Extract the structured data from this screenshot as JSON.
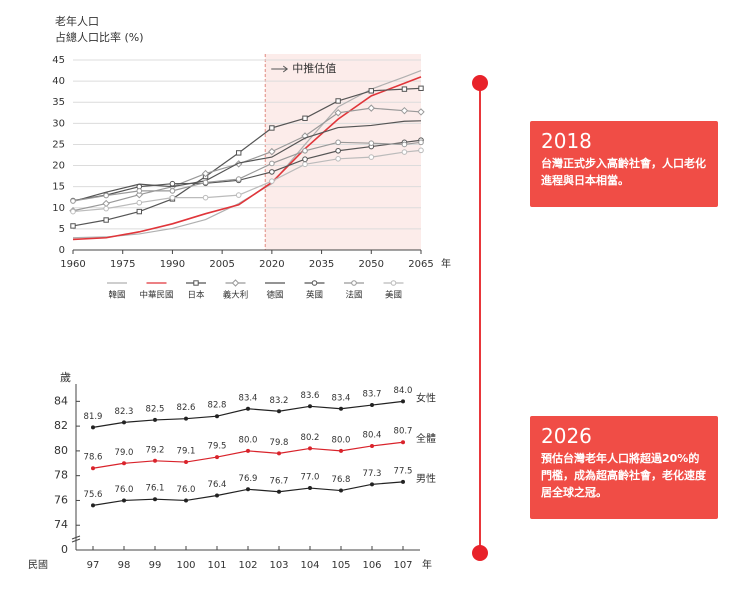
{
  "chart_data": [
    {
      "type": "line",
      "title": "老年人口",
      "y_label": "占總人口比率 (%)",
      "annotation": "中推估值",
      "projection_start": 2018,
      "x_unit": "年",
      "x": [
        1960,
        1970,
        1980,
        1990,
        2000,
        2010,
        2020,
        2030,
        2040,
        2050,
        2060,
        2065
      ],
      "xlim": [
        1960,
        2065
      ],
      "xticks": [
        1960,
        1975,
        1990,
        2005,
        2020,
        2035,
        2050,
        2065
      ],
      "ylim": [
        0,
        45
      ],
      "yticks": [
        0,
        5,
        10,
        15,
        20,
        25,
        30,
        35,
        40,
        45
      ],
      "grid": true,
      "legend": "bottom",
      "series": [
        {
          "name": "韓國",
          "color": "#b0b0b0",
          "marker": "none",
          "values": [
            2.9,
            3.1,
            3.8,
            5.1,
            7.2,
            11.0,
            15.7,
            25.0,
            33.9,
            38.1,
            41.0,
            42.5
          ]
        },
        {
          "name": "中華民國",
          "color": "#e0353a",
          "marker": "none",
          "values": [
            2.5,
            2.9,
            4.3,
            6.2,
            8.6,
            10.7,
            16.0,
            24.0,
            31.0,
            36.5,
            39.5,
            41.0
          ]
        },
        {
          "name": "日本",
          "color": "#555555",
          "marker": "square",
          "values": [
            5.7,
            7.1,
            9.1,
            12.1,
            17.4,
            23.0,
            28.9,
            31.2,
            35.3,
            37.7,
            38.1,
            38.3
          ]
        },
        {
          "name": "義大利",
          "color": "#999999",
          "marker": "diamond",
          "values": [
            9.3,
            11.0,
            13.1,
            15.0,
            18.1,
            20.4,
            23.3,
            27.0,
            32.5,
            33.6,
            33.0,
            32.7
          ]
        },
        {
          "name": "德國",
          "color": "#555555",
          "marker": "none",
          "values": [
            11.5,
            13.7,
            15.6,
            15.0,
            16.4,
            20.6,
            22.0,
            26.5,
            29.0,
            29.5,
            30.5,
            30.6
          ]
        },
        {
          "name": "英國",
          "color": "#555555",
          "marker": "circle",
          "values": [
            11.7,
            13.0,
            15.0,
            15.7,
            15.8,
            16.5,
            18.5,
            21.5,
            23.5,
            24.5,
            25.5,
            26.0
          ]
        },
        {
          "name": "法國",
          "color": "#999999",
          "marker": "circle",
          "values": [
            11.6,
            12.9,
            14.0,
            14.0,
            16.0,
            16.8,
            20.5,
            23.5,
            25.5,
            25.3,
            25.0,
            25.5
          ]
        },
        {
          "name": "美國",
          "color": "#bbbbbb",
          "marker": "circle",
          "values": [
            9.1,
            9.8,
            11.2,
            12.4,
            12.4,
            13.0,
            16.3,
            20.3,
            21.6,
            22.0,
            23.2,
            23.6
          ]
        }
      ]
    },
    {
      "type": "line",
      "y_label": "歲",
      "x_label": "民國",
      "x_unit": "年",
      "categories": [
        "97",
        "98",
        "99",
        "100",
        "101",
        "102",
        "103",
        "104",
        "105",
        "106",
        "107"
      ],
      "ylim": [
        72,
        85.4
      ],
      "yticks": [
        0,
        74,
        76,
        78,
        80,
        82,
        84
      ],
      "axis_break": true,
      "series": [
        {
          "name": "女性",
          "color": "#222222",
          "values": [
            81.9,
            82.3,
            82.5,
            82.6,
            82.8,
            83.4,
            83.2,
            83.6,
            83.4,
            83.7,
            84.0
          ],
          "value_labels": [
            "81.9",
            "82.3",
            "82.5",
            "82.6",
            "82.8",
            "83.4",
            "83.2",
            "83.6",
            "83.4",
            "83.7",
            "84.0"
          ]
        },
        {
          "name": "全體",
          "color": "#d9232b",
          "values": [
            78.6,
            79.0,
            79.2,
            79.1,
            79.5,
            80.0,
            79.8,
            80.2,
            80.0,
            80.4,
            80.7
          ],
          "value_labels": [
            "78.6",
            "79.0",
            "79.2",
            "79.1",
            "79.5",
            "80.0",
            "79.8",
            "80.2",
            "80.0",
            "80.4",
            "80.7"
          ]
        },
        {
          "name": "男性",
          "color": "#222222",
          "values": [
            75.6,
            76.0,
            76.1,
            76.0,
            76.4,
            76.9,
            76.7,
            77.0,
            76.8,
            77.3,
            77.5
          ],
          "value_labels": [
            "75.6",
            "76.0",
            "76.1",
            "76.0",
            "76.4",
            "76.9",
            "76.7",
            "77.0",
            "76.8",
            "77.3",
            "77.5"
          ]
        }
      ]
    }
  ],
  "cards": [
    {
      "year": "2018",
      "text": "台灣正式步入高齡社會，人口老化進程與日本相當。"
    },
    {
      "year": "2026",
      "text": "預估台灣老年人口將超過20%的門檻，成為超高齡社會，老化速度居全球之冠。"
    }
  ]
}
